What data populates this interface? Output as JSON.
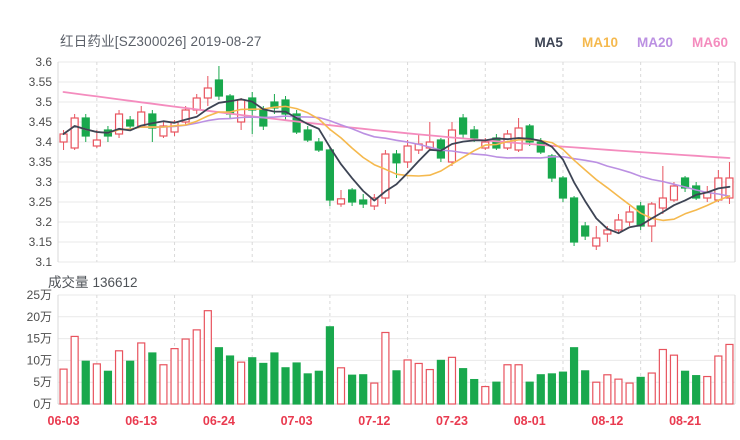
{
  "header": {
    "title": "红日药业[SZ300026] 2019-08-27"
  },
  "legend": {
    "items": [
      {
        "label": "MA5",
        "color": "#3d4454"
      },
      {
        "label": "MA10",
        "color": "#f5b94e"
      },
      {
        "label": "MA20",
        "color": "#bb90e2"
      },
      {
        "label": "MA60",
        "color": "#f48cbe"
      }
    ]
  },
  "chart_data": {
    "type": "candlestick",
    "title": "红日药业[SZ300026] 2019-08-27",
    "volume_label": "成交量",
    "volume_value": "136612",
    "price_axis": {
      "min": 3.1,
      "max": 3.6,
      "step": 0.05,
      "labels": [
        "3.6",
        "3.55",
        "3.5",
        "3.45",
        "3.4",
        "3.35",
        "3.3",
        "3.25",
        "3.2",
        "3.15",
        "3.1"
      ]
    },
    "volume_axis": {
      "min_wan": 0,
      "max_wan": 25,
      "step_wan": 5,
      "labels": [
        "25万",
        "20万",
        "15万",
        "10万",
        "5万",
        "0万"
      ]
    },
    "x_ticks": [
      {
        "index": 0,
        "label": "06-03"
      },
      {
        "index": 7,
        "label": "06-13"
      },
      {
        "index": 14,
        "label": "06-24"
      },
      {
        "index": 21,
        "label": "07-03"
      },
      {
        "index": 28,
        "label": "07-12"
      },
      {
        "index": 35,
        "label": "07-23"
      },
      {
        "index": 42,
        "label": "08-01"
      },
      {
        "index": 49,
        "label": "08-12"
      },
      {
        "index": 56,
        "label": "08-21"
      }
    ],
    "vgrid_indices": [
      3,
      10,
      17,
      24,
      31,
      38,
      45,
      52,
      59
    ],
    "candles_ohlc": [
      [
        3.4,
        3.43,
        3.38,
        3.42
      ],
      [
        3.385,
        3.47,
        3.38,
        3.46
      ],
      [
        3.46,
        3.47,
        3.4,
        3.415
      ],
      [
        3.39,
        3.43,
        3.385,
        3.405
      ],
      [
        3.43,
        3.44,
        3.4,
        3.415
      ],
      [
        3.42,
        3.48,
        3.41,
        3.47
      ],
      [
        3.455,
        3.465,
        3.43,
        3.44
      ],
      [
        3.44,
        3.49,
        3.435,
        3.475
      ],
      [
        3.47,
        3.48,
        3.4,
        3.435
      ],
      [
        3.415,
        3.45,
        3.41,
        3.44
      ],
      [
        3.425,
        3.455,
        3.415,
        3.45
      ],
      [
        3.45,
        3.49,
        3.44,
        3.48
      ],
      [
        3.48,
        3.52,
        3.47,
        3.51
      ],
      [
        3.51,
        3.565,
        3.49,
        3.535
      ],
      [
        3.555,
        3.59,
        3.505,
        3.515
      ],
      [
        3.515,
        3.52,
        3.46,
        3.47
      ],
      [
        3.45,
        3.51,
        3.43,
        3.505
      ],
      [
        3.51,
        3.525,
        3.42,
        3.48
      ],
      [
        3.48,
        3.49,
        3.43,
        3.44
      ],
      [
        3.5,
        3.52,
        3.47,
        3.485
      ],
      [
        3.505,
        3.515,
        3.455,
        3.47
      ],
      [
        3.47,
        3.48,
        3.42,
        3.425
      ],
      [
        3.43,
        3.44,
        3.4,
        3.405
      ],
      [
        3.4,
        3.41,
        3.375,
        3.38
      ],
      [
        3.38,
        3.39,
        3.24,
        3.255
      ],
      [
        3.245,
        3.28,
        3.238,
        3.258
      ],
      [
        3.28,
        3.285,
        3.24,
        3.25
      ],
      [
        3.255,
        3.27,
        3.235,
        3.245
      ],
      [
        3.24,
        3.27,
        3.23,
        3.26
      ],
      [
        3.26,
        3.38,
        3.245,
        3.37
      ],
      [
        3.37,
        3.38,
        3.31,
        3.348
      ],
      [
        3.35,
        3.405,
        3.335,
        3.39
      ],
      [
        3.38,
        3.42,
        3.37,
        3.395
      ],
      [
        3.385,
        3.45,
        3.38,
        3.4
      ],
      [
        3.405,
        3.41,
        3.35,
        3.36
      ],
      [
        3.35,
        3.45,
        3.34,
        3.43
      ],
      [
        3.46,
        3.47,
        3.41,
        3.42
      ],
      [
        3.43,
        3.44,
        3.4,
        3.41
      ],
      [
        3.385,
        3.41,
        3.38,
        3.4
      ],
      [
        3.41,
        3.42,
        3.38,
        3.385
      ],
      [
        3.385,
        3.43,
        3.38,
        3.42
      ],
      [
        3.38,
        3.46,
        3.375,
        3.435
      ],
      [
        3.44,
        3.445,
        3.39,
        3.4
      ],
      [
        3.4,
        3.41,
        3.37,
        3.375
      ],
      [
        3.365,
        3.37,
        3.3,
        3.31
      ],
      [
        3.31,
        3.315,
        3.25,
        3.26
      ],
      [
        3.26,
        3.265,
        3.14,
        3.15
      ],
      [
        3.19,
        3.2,
        3.155,
        3.165
      ],
      [
        3.14,
        3.19,
        3.13,
        3.16
      ],
      [
        3.17,
        3.19,
        3.15,
        3.18
      ],
      [
        3.18,
        3.22,
        3.17,
        3.205
      ],
      [
        3.2,
        3.24,
        3.19,
        3.225
      ],
      [
        3.24,
        3.25,
        3.18,
        3.19
      ],
      [
        3.19,
        3.25,
        3.15,
        3.245
      ],
      [
        3.235,
        3.34,
        3.22,
        3.26
      ],
      [
        3.255,
        3.3,
        3.25,
        3.29
      ],
      [
        3.31,
        3.315,
        3.275,
        3.285
      ],
      [
        3.29,
        3.3,
        3.255,
        3.26
      ],
      [
        3.26,
        3.29,
        3.25,
        3.275
      ],
      [
        3.255,
        3.33,
        3.25,
        3.31
      ],
      [
        3.26,
        3.35,
        3.245,
        3.31
      ]
    ],
    "volumes_wan": [
      8.0,
      15.5,
      9.8,
      9.2,
      7.5,
      12.2,
      9.8,
      14.0,
      11.7,
      9.0,
      12.7,
      14.9,
      17.0,
      21.4,
      12.9,
      11.0,
      9.6,
      10.6,
      9.3,
      11.7,
      8.3,
      9.4,
      6.9,
      7.5,
      17.7,
      8.3,
      6.6,
      6.7,
      4.8,
      16.4,
      7.6,
      10.1,
      9.3,
      7.9,
      10.0,
      10.7,
      8.1,
      5.6,
      4.0,
      5.0,
      9.0,
      9.0,
      5.0,
      6.7,
      6.9,
      7.3,
      12.9,
      7.6,
      5.0,
      6.7,
      5.7,
      4.8,
      6.1,
      7.1,
      12.5,
      11.2,
      7.5,
      6.5,
      6.3,
      11.0,
      13.66
    ],
    "ma_windows": {
      "ma5": 5,
      "ma10": 10,
      "ma20": 20
    },
    "ma60_trend": {
      "start": 3.525,
      "end": 3.36,
      "dip": 0.018
    },
    "colors": {
      "up": "#e8535e",
      "down": "#19a84d",
      "date_label": "#e93a4f",
      "axis_label": "#4d4d4d",
      "grid": "#e9e9e9",
      "grid_dashed": "#d9d9d9",
      "border": "#d9d9d9",
      "title": "#5a5f68",
      "ma5": "#3d4454",
      "ma10": "#f5b94e",
      "ma20": "#bb90e2",
      "ma60": "#f48cbe"
    }
  }
}
